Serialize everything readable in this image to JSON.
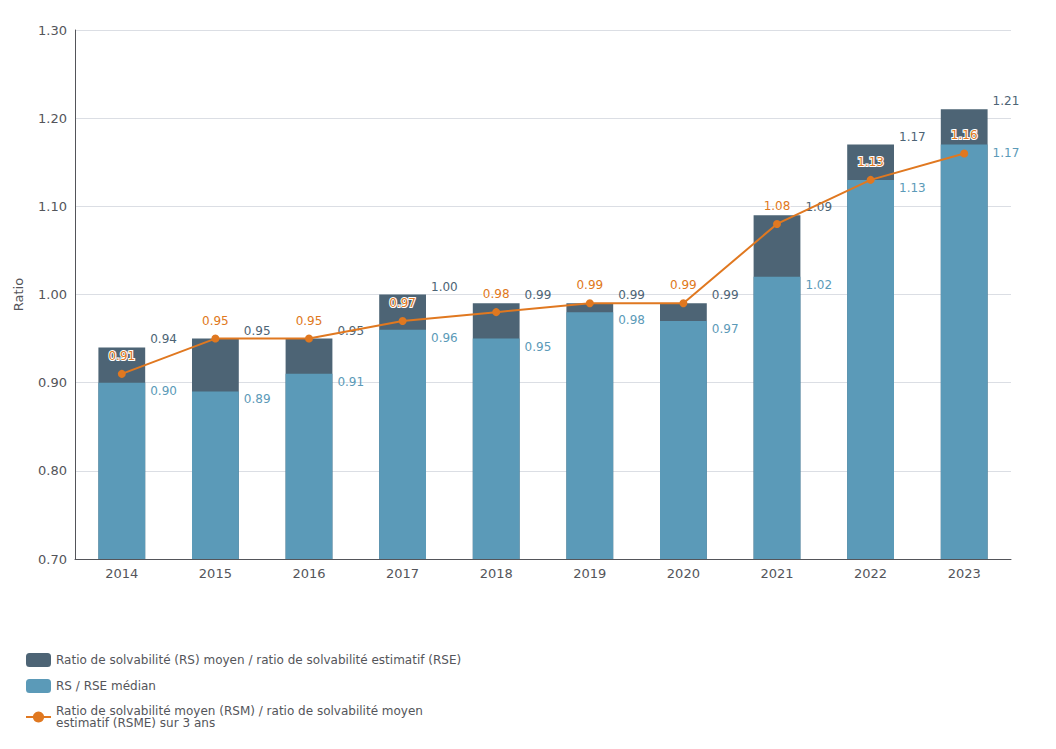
{
  "chart_data": {
    "type": "bar",
    "categories": [
      "2014",
      "2015",
      "2016",
      "2017",
      "2018",
      "2019",
      "2020",
      "2021",
      "2022",
      "2023"
    ],
    "ylabel": "Ratio",
    "ylim": [
      0.7,
      1.3
    ],
    "yticks": [
      {
        "value": 0.7,
        "label": "0.70"
      },
      {
        "value": 0.8,
        "label": "0.80"
      },
      {
        "value": 0.9,
        "label": "0.90"
      },
      {
        "value": 1.0,
        "label": "1.00"
      },
      {
        "value": 1.1,
        "label": "1.10"
      },
      {
        "value": 1.2,
        "label": "1.20"
      },
      {
        "value": 1.3,
        "label": "1.30"
      }
    ],
    "grid": true,
    "legend": "bottom",
    "data_labels": true,
    "series": [
      {
        "name": "Ratio de solvabilité (RS) moyen / ratio de solvabilité estimatif (RSE)",
        "type": "bar",
        "color": "#4d6475",
        "values": [
          0.94,
          0.95,
          0.95,
          1.0,
          0.99,
          0.99,
          0.99,
          1.09,
          1.17,
          1.21
        ],
        "value_labels": [
          "0.94",
          "0.95",
          "0.95",
          "1.00",
          "0.99",
          "0.99",
          "0.99",
          "1.09",
          "1.17",
          "1.21"
        ]
      },
      {
        "name": "RS / RSE médian",
        "type": "bar",
        "color": "#5b9ab8",
        "values": [
          0.9,
          0.89,
          0.91,
          0.96,
          0.95,
          0.98,
          0.97,
          1.02,
          1.13,
          1.17
        ],
        "value_labels": [
          "0.90",
          "0.89",
          "0.91",
          "0.96",
          "0.95",
          "0.98",
          "0.97",
          "1.02",
          "1.13",
          "1.17"
        ]
      },
      {
        "name": "Ratio de solvabilité moyen (RSM) / ratio de solvabilité moyen\nestimatif (RSME) sur 3 ans",
        "type": "line",
        "color": "#e07820",
        "marker": "circle",
        "values": [
          0.91,
          0.95,
          0.95,
          0.97,
          0.98,
          0.99,
          0.99,
          1.08,
          1.13,
          1.16
        ],
        "value_labels": [
          "0.91",
          "0.95",
          "0.95",
          "0.97",
          "0.98",
          "0.99",
          "0.99",
          "1.08",
          "1.13",
          "1.16"
        ]
      }
    ]
  }
}
